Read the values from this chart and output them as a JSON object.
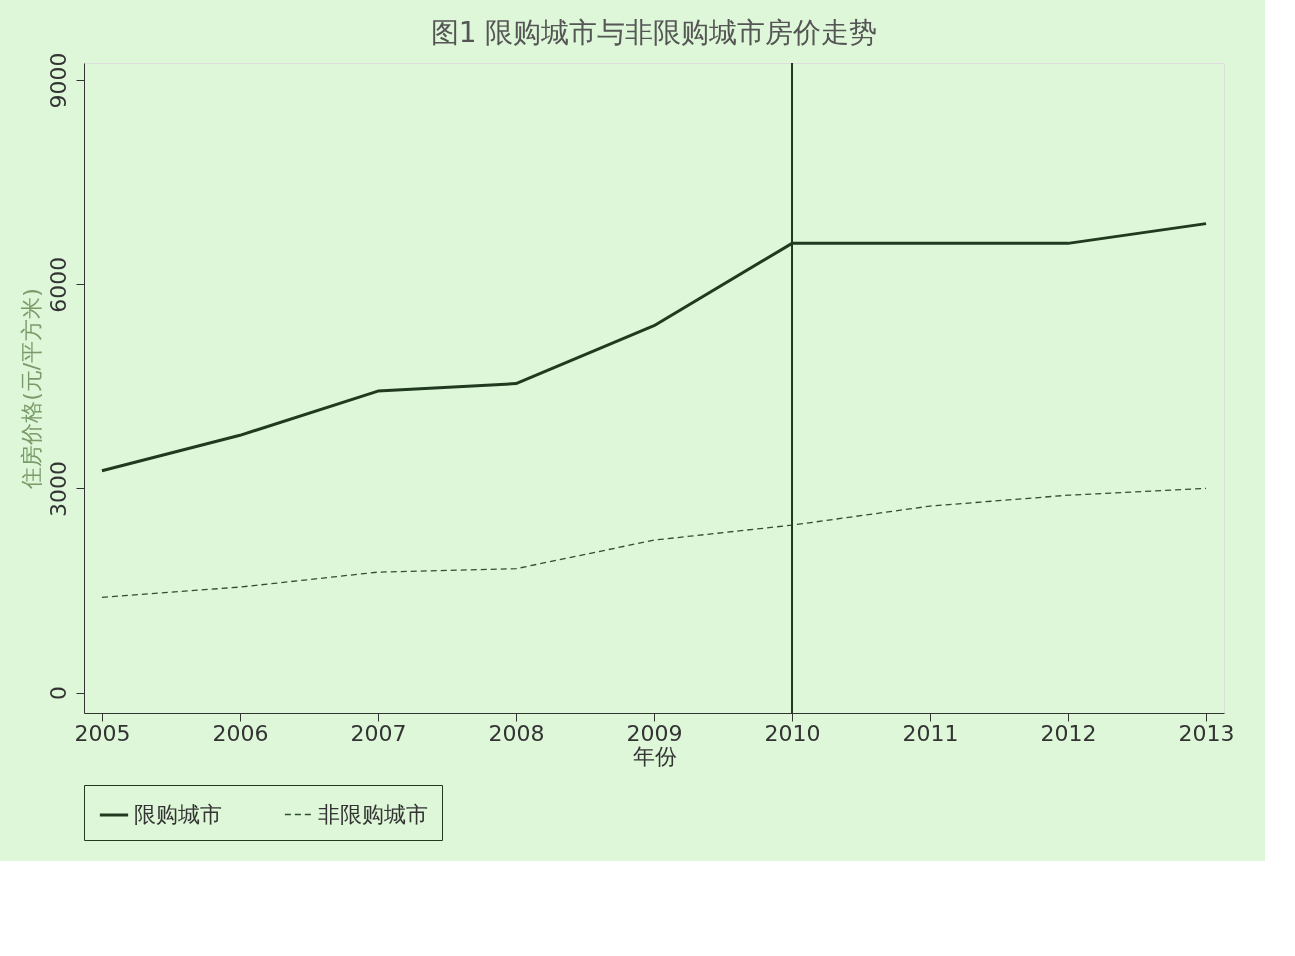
{
  "chart_data": {
    "type": "line",
    "title": "图1 限购城市与非限购城市房价走势",
    "xlabel": "年份",
    "ylabel": "住房价格(元/平方米)",
    "x": [
      2005,
      2006,
      2007,
      2008,
      2009,
      2010,
      2011,
      2012,
      2013
    ],
    "series": [
      {
        "name": "限购城市",
        "color": "#1f3a1f",
        "line_style": "solid",
        "values": [
          3260,
          3780,
          4430,
          4540,
          5390,
          6600,
          6600,
          6600,
          6890
        ]
      },
      {
        "name": "非限购城市",
        "color": "#2f4f2f",
        "line_style": "dashed",
        "values": [
          1400,
          1550,
          1770,
          1820,
          2240,
          2460,
          2740,
          2900,
          3000
        ]
      }
    ],
    "xlim": [
      2004.87,
      2013.13
    ],
    "xticks": [
      2005,
      2006,
      2007,
      2008,
      2009,
      2010,
      2011,
      2012,
      2013
    ],
    "ylim": [
      -300,
      9250
    ],
    "yticks": [
      0,
      3000,
      6000,
      9000
    ],
    "ref_lines": [
      {
        "axis": "x",
        "value": 2010,
        "color": "#1f3a1f"
      }
    ],
    "grid": false,
    "legend": "bottom",
    "marker": "none"
  }
}
